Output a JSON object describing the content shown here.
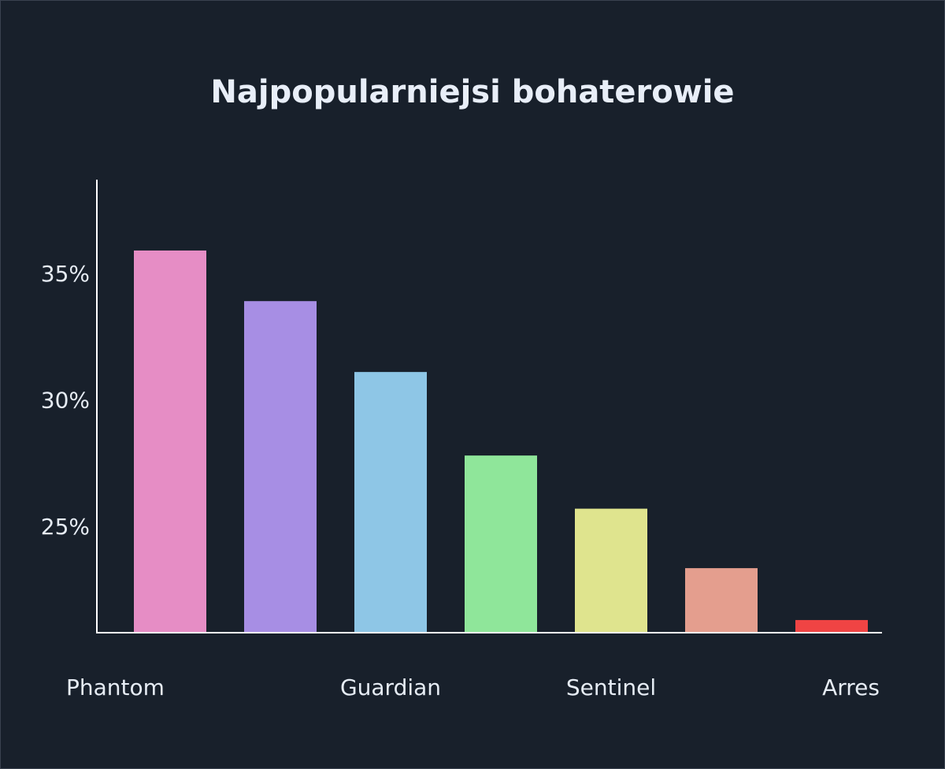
{
  "chart_data": {
    "type": "bar",
    "title": "Najpopularniejsi bohaterowie",
    "xlabel": "",
    "ylabel": "",
    "categories": [
      "Phantom",
      "",
      "Guardian",
      "",
      "Sentinel",
      "",
      "Arres"
    ],
    "values": [
      35.9,
      33.9,
      31.1,
      27.8,
      25.7,
      23.35,
      21.3
    ],
    "colors": [
      "#e68dc5",
      "#a78ee4",
      "#8ec6e6",
      "#8fe69a",
      "#dfe48e",
      "#e49e8e",
      "#f04444"
    ],
    "ylim": [
      20.8,
      38.7
    ],
    "yticks": [
      25,
      30,
      35
    ],
    "ytick_labels": [
      "25%",
      "30%",
      "35%"
    ],
    "grid": false,
    "legend": "none"
  }
}
